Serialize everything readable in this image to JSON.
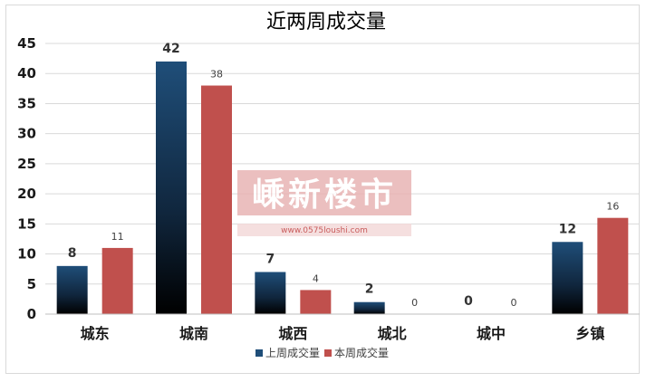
{
  "chart_data": {
    "type": "bar",
    "title": "近两周成交量",
    "categories": [
      "城东",
      "城南",
      "城西",
      "城北",
      "城中",
      "乡镇"
    ],
    "series": [
      {
        "name": "上周成交量",
        "values": [
          8,
          42,
          7,
          2,
          0,
          12
        ],
        "color": "#1f4e79"
      },
      {
        "name": "本周成交量",
        "values": [
          11,
          38,
          4,
          0,
          0,
          16
        ],
        "color": "#c0504d"
      }
    ],
    "ylim": [
      0,
      45
    ],
    "yticks": [
      0,
      5,
      10,
      15,
      20,
      25,
      30,
      35,
      40,
      45
    ],
    "grid": true,
    "legend": "bottom"
  },
  "watermark": {
    "main": "嵊新楼市",
    "sub": "www.0575loushi.com"
  }
}
